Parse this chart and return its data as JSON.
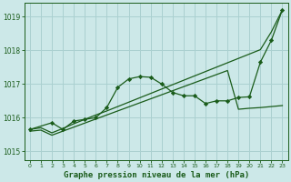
{
  "title": "Graphe pression niveau de la mer (hPa)",
  "background_color": "#cce8e8",
  "grid_color": "#aad0d0",
  "line_color": "#1a5c1a",
  "xlim": [
    -0.5,
    23.5
  ],
  "ylim": [
    1014.75,
    1019.4
  ],
  "yticks": [
    1015,
    1016,
    1017,
    1018,
    1019
  ],
  "xticks": [
    0,
    1,
    2,
    3,
    4,
    5,
    6,
    7,
    8,
    9,
    10,
    11,
    12,
    13,
    14,
    15,
    16,
    17,
    18,
    19,
    20,
    21,
    22,
    23
  ],
  "s1_x": [
    0,
    1,
    2,
    3,
    4,
    5,
    6,
    7,
    8,
    9,
    10,
    11,
    12,
    13,
    14,
    15,
    16,
    17,
    18,
    19,
    20,
    21,
    22,
    23
  ],
  "s1_y": [
    1015.65,
    1015.7,
    1015.55,
    1015.68,
    1015.82,
    1015.95,
    1016.08,
    1016.2,
    1016.33,
    1016.46,
    1016.59,
    1016.72,
    1016.85,
    1016.98,
    1017.11,
    1017.24,
    1017.37,
    1017.5,
    1017.63,
    1017.76,
    1017.89,
    1018.02,
    1018.55,
    1019.2
  ],
  "s2_x": [
    0,
    1,
    2,
    3,
    4,
    5,
    6,
    7,
    8,
    9,
    10,
    11,
    12,
    13,
    14,
    15,
    16,
    17,
    18,
    19,
    20,
    21,
    22,
    23
  ],
  "s2_y": [
    1015.6,
    1015.63,
    1015.48,
    1015.6,
    1015.72,
    1015.84,
    1015.96,
    1016.08,
    1016.2,
    1016.32,
    1016.44,
    1016.56,
    1016.68,
    1016.8,
    1016.92,
    1017.04,
    1017.16,
    1017.28,
    1017.4,
    1016.25,
    1016.28,
    1016.3,
    1016.33,
    1016.36
  ],
  "s3_x": [
    0,
    2,
    3,
    4,
    5,
    6,
    7,
    8,
    9,
    10,
    11,
    12,
    13,
    14,
    15,
    16,
    17,
    18,
    19,
    20,
    21,
    22,
    23
  ],
  "s3_y": [
    1015.65,
    1015.85,
    1015.65,
    1015.9,
    1015.95,
    1016.0,
    1016.3,
    1016.9,
    1017.15,
    1017.22,
    1017.2,
    1017.0,
    1016.75,
    1016.65,
    1016.65,
    1016.42,
    1016.5,
    1016.5,
    1016.6,
    1016.62,
    1017.65,
    1018.3,
    1019.2
  ]
}
